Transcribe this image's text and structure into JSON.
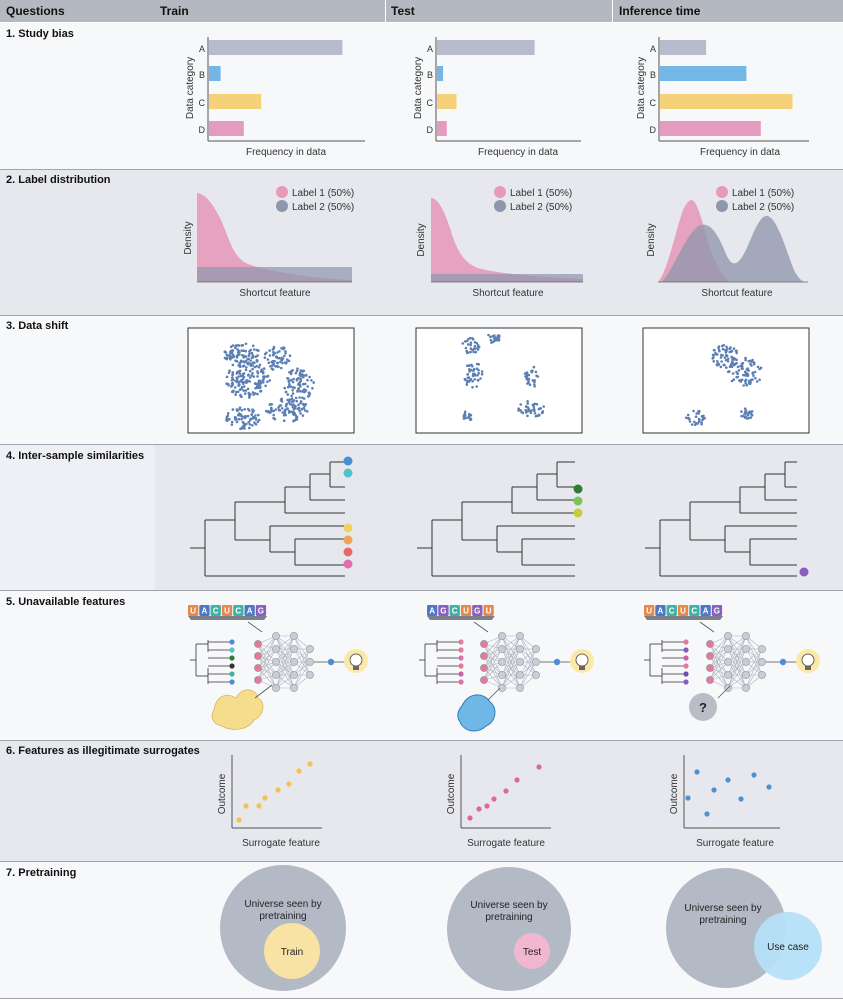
{
  "header": {
    "questions": "Questions",
    "train": "Train",
    "test": "Test",
    "inference": "Inference time"
  },
  "colors": {
    "grey": "#b6bccb",
    "blue": "#74b6e6",
    "yellow": "#f5d27a",
    "pink": "#e49bbf",
    "dotblue": "#5b7fb5",
    "label1": "#e59bb9",
    "label2": "#8f97ad"
  },
  "rows": {
    "study_bias": {
      "label": "1.  Study bias",
      "categories": [
        "A",
        "B",
        "C",
        "D"
      ],
      "ylabel": "Data category",
      "xlabel": "Frequency in data",
      "train": [
        0.92,
        0.08,
        0.36,
        0.24
      ],
      "test": [
        0.8,
        0.05,
        0.16,
        0.08
      ],
      "inference": [
        0.32,
        0.6,
        0.92,
        0.7
      ]
    },
    "label_distribution": {
      "label": "2.  Label distribution",
      "legend": [
        "Label 1 (50%)",
        "Label 2 (50%)"
      ],
      "ylabel": "Density",
      "xlabel": "Shortcut feature"
    },
    "data_shift": {
      "label": "3.  Data shift"
    },
    "similarities": {
      "label": "4.  Inter-sample similarities"
    },
    "unavailable": {
      "label": "5.  Unavailable features",
      "seq_train": [
        "U",
        "A",
        "C",
        "U",
        "C",
        "A",
        "G"
      ],
      "seq_test": [
        "A",
        "G",
        "C",
        "U",
        "G",
        "U"
      ],
      "seq_inf": [
        "U",
        "A",
        "C",
        "U",
        "C",
        "A",
        "G"
      ],
      "unknown": "?"
    },
    "surrogates": {
      "label": "6.  Features as illegitimate surrogates",
      "ylabel": "Outcome",
      "xlabel": "Surrogate feature"
    },
    "pretraining": {
      "label": "7.  Pretraining",
      "universe": "Universe seen by pretraining",
      "train": "Train",
      "test": "Test",
      "usecase": "Use case"
    }
  }
}
